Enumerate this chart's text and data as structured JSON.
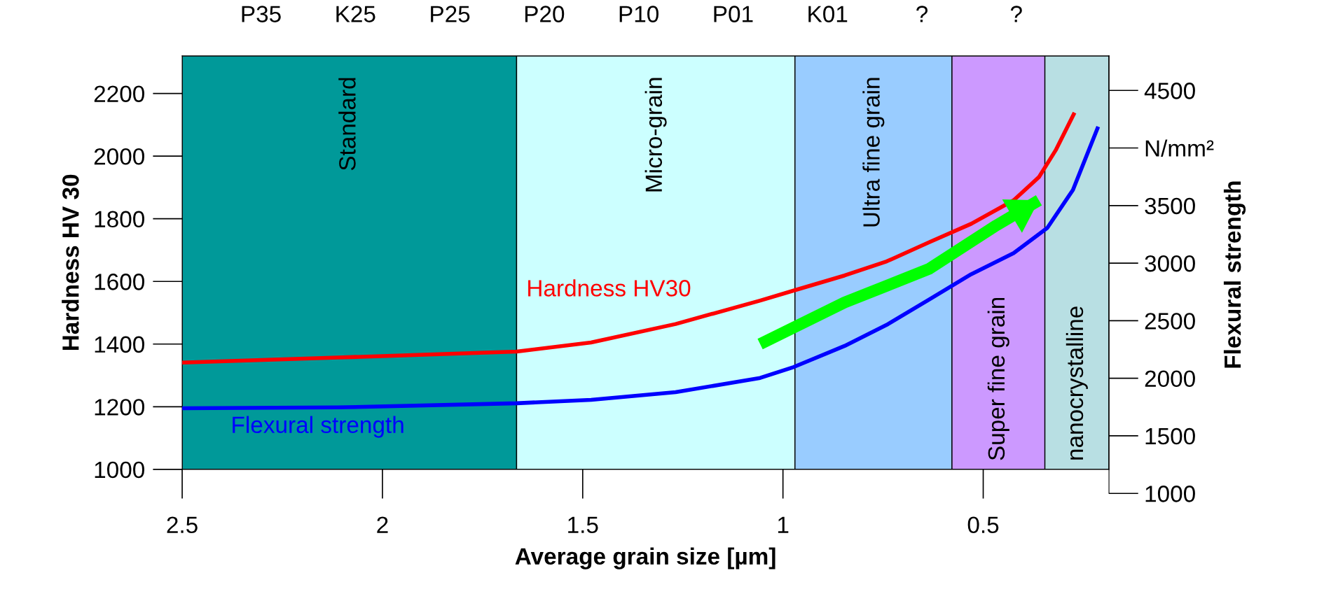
{
  "chart_data": {
    "type": "line",
    "xlabel": "Average grain size [µm]",
    "ylabel": "Hardness HV 30",
    "y2label": "Flexural strength",
    "xlim": [
      2.5,
      0.186
    ],
    "xticks": [
      2.5,
      2,
      1.5,
      1,
      0.5
    ],
    "ylim": [
      1000,
      2320
    ],
    "yticks": [
      1000,
      1200,
      1400,
      1600,
      1800,
      2000,
      2200
    ],
    "y2lim": [
      1000,
      4800
    ],
    "y2ticks": [
      1000,
      1500,
      2000,
      2500,
      3000,
      3500,
      {
        "value": 4000,
        "label": "N/mm²"
      },
      4500
    ],
    "annotations": [
      "P35",
      "K25",
      "P25",
      "P20",
      "P10",
      "P01",
      "K01",
      "?",
      "?"
    ],
    "grid": false,
    "legend": false,
    "bands": [
      {
        "axis": "x",
        "from": 2.5,
        "to": 1.665,
        "label": "Standard",
        "color": "#009999"
      },
      {
        "axis": "x",
        "from": 1.665,
        "to": 0.97,
        "label": "Micro-grain",
        "color": "#ccffff"
      },
      {
        "axis": "x",
        "from": 0.97,
        "to": 0.578,
        "label": "Ultra fine grain",
        "color": "#99ccff"
      },
      {
        "axis": "x",
        "from": 0.578,
        "to": 0.346,
        "label": "Super fine grain",
        "color": "#cc99ff"
      },
      {
        "axis": "x",
        "from": 0.346,
        "to": 0.186,
        "label": "nanocrystalline",
        "color": "#b8dfe3"
      }
    ],
    "series": [
      {
        "name": "Hardness HV30",
        "color": "#ff0000",
        "x": [
          2.5,
          2.112,
          1.665,
          1.479,
          1.268,
          1.057,
          0.973,
          0.846,
          0.741,
          0.635,
          0.53,
          0.424,
          0.361,
          0.319,
          0.272
        ],
        "values": [
          1341,
          1357,
          1376,
          1405,
          1464,
          1539,
          1571,
          1619,
          1664,
          1725,
          1784,
          1859,
          1933,
          2019,
          2139
        ]
      },
      {
        "name": "Flexural strength",
        "color": "#0000ff",
        "axis": "y2",
        "x": [
          2.5,
          2.112,
          1.665,
          1.479,
          1.268,
          1.057,
          0.973,
          0.846,
          0.741,
          0.635,
          0.53,
          0.424,
          0.34,
          0.276,
          0.213
        ],
        "values": [
          1740,
          1747,
          1783,
          1813,
          1879,
          2003,
          2098,
          2281,
          2464,
          2684,
          2904,
          3087,
          3306,
          3636,
          4185
        ]
      },
      {
        "color": "#00ff00",
        "x": [
          1.057,
          0.846,
          0.635,
          0.467,
          0.361
        ],
        "values": [
          1400,
          1533,
          1640,
          1779,
          1859
        ]
      }
    ]
  }
}
